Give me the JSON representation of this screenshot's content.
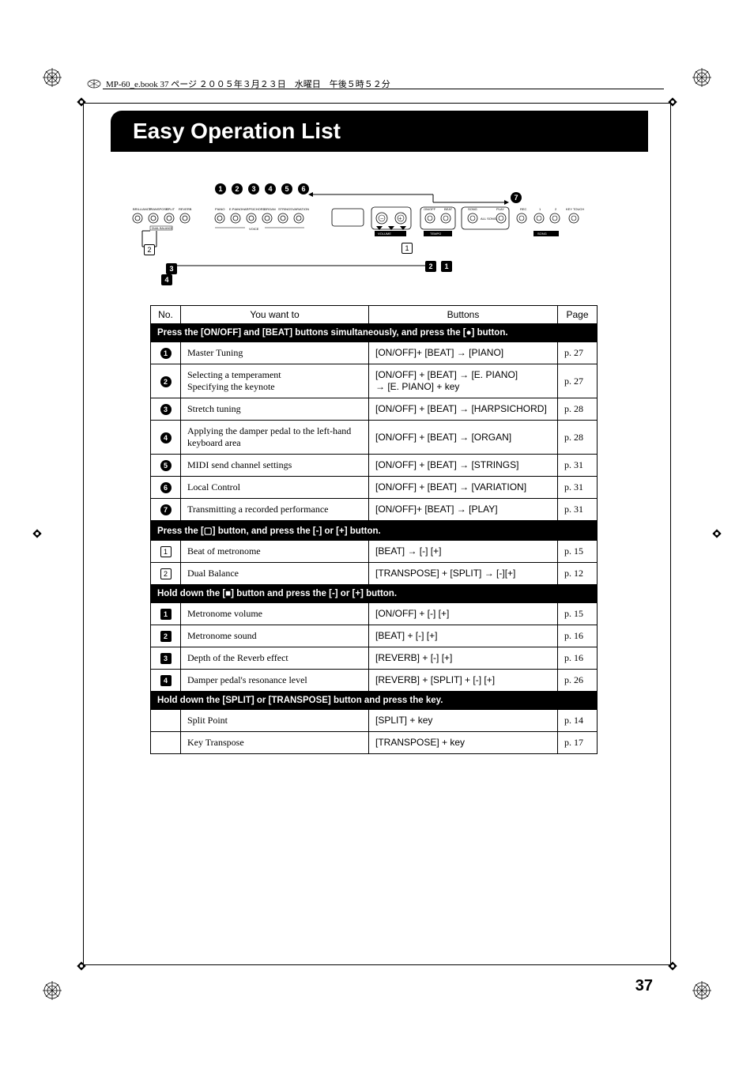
{
  "header_note": "MP-60_e.book 37 ページ ２００５年３月２３日　水曜日　午後５時５２分",
  "title": "Easy Operation List",
  "page_number": "37",
  "table": {
    "headers": {
      "no": "No.",
      "want": "You want to",
      "buttons": "Buttons",
      "page": "Page"
    },
    "sections": [
      {
        "heading": "Press the [ON/OFF] and [BEAT] buttons simultaneously, and press the [●] button.",
        "badge_type": "circle",
        "rows": [
          {
            "n": "1",
            "want": "Master Tuning",
            "buttons": "[ON/OFF]+ [BEAT] → [PIANO]",
            "page": "p. 27"
          },
          {
            "n": "2",
            "want_line1": "Selecting a temperament",
            "want_line2": "Specifying the keynote",
            "buttons_line1": "[ON/OFF] + [BEAT] → [E. PIANO]",
            "buttons_line2": "→ [E. PIANO] + key",
            "page": "p. 27"
          },
          {
            "n": "3",
            "want": "Stretch tuning",
            "buttons": "[ON/OFF] + [BEAT] → [HARPSICHORD]",
            "page": "p. 28"
          },
          {
            "n": "4",
            "want_line1": "Applying the damper pedal to the left-hand",
            "want_line2": "keyboard area",
            "buttons": "[ON/OFF] + [BEAT] → [ORGAN]",
            "page": "p. 28"
          },
          {
            "n": "5",
            "want": "MIDI send channel settings",
            "buttons": "[ON/OFF] + [BEAT] → [STRINGS]",
            "page": "p. 31"
          },
          {
            "n": "6",
            "want": "Local Control",
            "buttons": "[ON/OFF] + [BEAT] → [VARIATION]",
            "page": "p. 31"
          },
          {
            "n": "7",
            "want": "Transmitting a recorded performance",
            "buttons": "[ON/OFF]+ [BEAT] → [PLAY]",
            "page": "p. 31"
          }
        ]
      },
      {
        "heading": "Press the [▢] button, and press the [-] or [+] button.",
        "badge_type": "box",
        "rows": [
          {
            "n": "1",
            "want": "Beat of metronome",
            "buttons": "[BEAT] → [-] [+]",
            "page": "p. 15"
          },
          {
            "n": "2",
            "want": "Dual Balance",
            "buttons": "[TRANSPOSE] + [SPLIT] → [-][+]",
            "page": "p. 12"
          }
        ]
      },
      {
        "heading": "Hold down the [■] button and press the [-] or [+] button.",
        "badge_type": "black-box",
        "rows": [
          {
            "n": "1",
            "want": "Metronome volume",
            "buttons": "[ON/OFF] + [-] [+]",
            "page": "p. 15"
          },
          {
            "n": "2",
            "want": "Metronome sound",
            "buttons": "[BEAT] + [-] [+]",
            "page": "p. 16"
          },
          {
            "n": "3",
            "want": "Depth of the Reverb effect",
            "buttons": "[REVERB] + [-] [+]",
            "page": "p. 16"
          },
          {
            "n": "4",
            "want": "Damper pedal's resonance level",
            "buttons": "[REVERB] + [SPLIT] + [-] [+]",
            "page": "p. 26"
          }
        ]
      },
      {
        "heading": "Hold down the [SPLIT] or [TRANSPOSE] button and press the key.",
        "badge_type": "none",
        "rows": [
          {
            "n": "",
            "want": "Split Point",
            "buttons": "[SPLIT] + key",
            "page": "p. 14"
          },
          {
            "n": "",
            "want": "Key Transpose",
            "buttons": "[TRANSPOSE] + key",
            "page": "p. 17"
          }
        ]
      }
    ]
  },
  "diagram": {
    "button_labels_row1": [
      "BRILLIANCE",
      "TRANSPOSE",
      "SPLIT",
      "REVERB"
    ],
    "button_labels_row2": [
      "PIANO",
      "E.PIANO",
      "HARPSICHORD",
      "ORGAN",
      "STRINGS",
      "VARIATION"
    ],
    "button_labels_row3": [
      "ON/OFF",
      "BEAT",
      "SONG",
      "PLAY",
      "REC",
      "1",
      "2",
      "KEY TOUCH"
    ],
    "sub_labels": [
      "DUAL BALANCE",
      "VOICE",
      "VOLUME",
      "TEMPO",
      "ALL SONG",
      "SONG"
    ]
  }
}
